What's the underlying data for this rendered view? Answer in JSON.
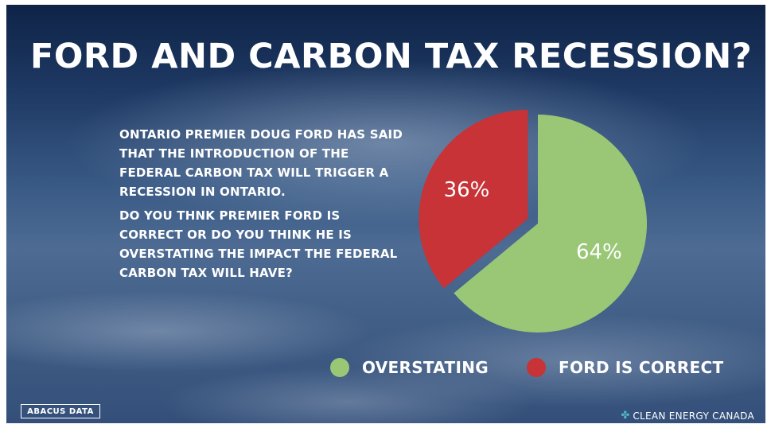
{
  "title": "FORD AND CARBON TAX RECESSION?",
  "paragraphs": {
    "first": "ONTARIO PREMIER DOUG FORD HAS SAID THAT THE INTRODUCTION OF THE FEDERAL CARBON TAX WILL TRIGGER A RECESSION IN ONTARIO.",
    "second": "DO YOU THNK PREMIER FORD IS CORRECT OR DO YOU THINK HE IS OVERSTATING THE IMPACT THE FEDERAL CARBON TAX WILL HAVE?"
  },
  "chart_data": {
    "type": "pie",
    "slices": [
      {
        "name": "OVERSTATING",
        "value": 64,
        "label": "64%",
        "color": "#99c776"
      },
      {
        "name": "FORD IS CORRECT",
        "value": 36,
        "label": "36%",
        "color": "#c73336"
      }
    ],
    "start": "12 o'clock",
    "direction": "clockwise",
    "exploded_slice": "FORD IS CORRECT",
    "legend_placement": "bottom"
  },
  "legend": {
    "items": [
      {
        "label": "OVERSTATING",
        "color": "#99c776"
      },
      {
        "label": "FORD IS CORRECT",
        "color": "#c73336"
      }
    ]
  },
  "logos": {
    "left": "ABACUS DATA",
    "right": "CLEAN ENERGY CANADA",
    "right_icon": "cec-logo-icon"
  }
}
